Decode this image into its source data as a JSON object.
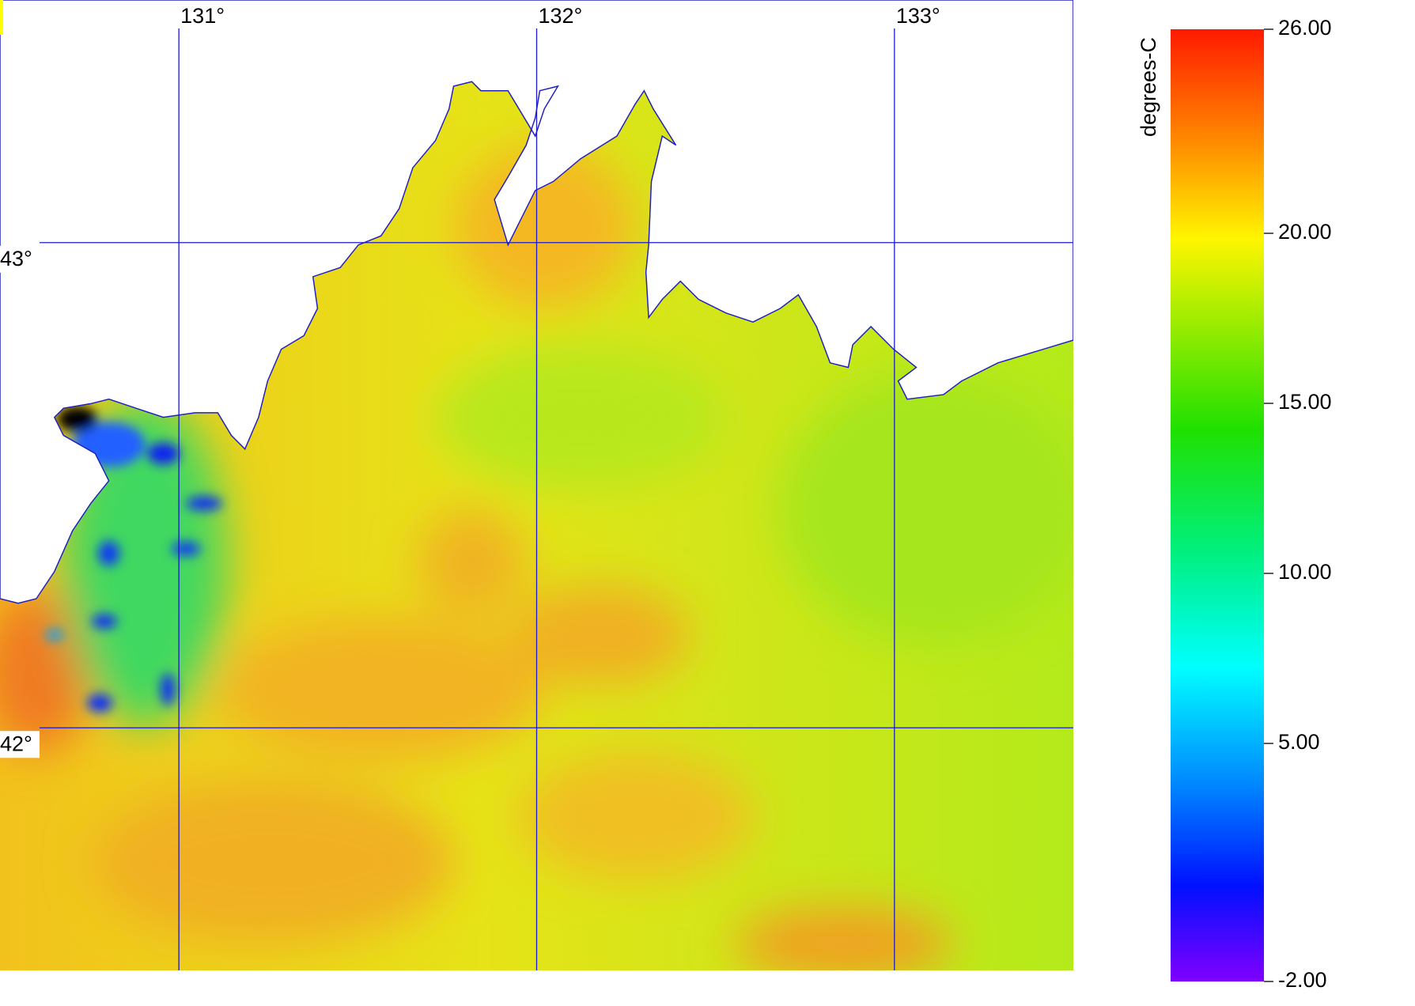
{
  "map": {
    "lon_ticks": [
      {
        "value": 131,
        "label": "131°"
      },
      {
        "value": 132,
        "label": "132°"
      },
      {
        "value": 133,
        "label": "133°"
      }
    ],
    "lat_ticks": [
      {
        "value": 43,
        "label": "43°"
      },
      {
        "value": 42,
        "label": "42°"
      }
    ],
    "xlim": [
      130.5,
      133.5
    ],
    "ylim": [
      41.5,
      43.5
    ]
  },
  "colorbar": {
    "label": "degrees-C",
    "lim": [
      -2,
      26
    ],
    "ticks": [
      {
        "value": 26,
        "label": "26.00"
      },
      {
        "value": 20,
        "label": "20.00"
      },
      {
        "value": 15,
        "label": "15.00"
      },
      {
        "value": 10,
        "label": "10.00"
      },
      {
        "value": 5,
        "label": "5.00"
      },
      {
        "value": -2,
        "label": "-2.00"
      }
    ]
  }
}
